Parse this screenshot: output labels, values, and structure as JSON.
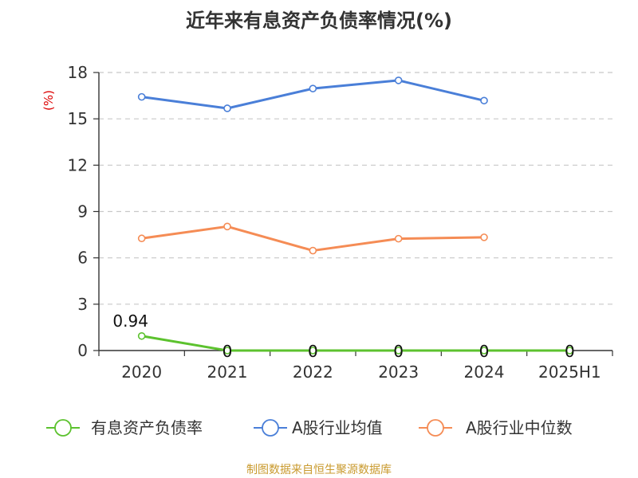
{
  "source": "制图数据来自恒生聚源数据库",
  "chart_data": {
    "type": "line",
    "title": "近年来有息资产负债率情况(%)",
    "ylabel": "(%)",
    "xlabel": "",
    "categories": [
      "2020",
      "2021",
      "2022",
      "2023",
      "2024",
      "2025H1"
    ],
    "ylim": [
      0,
      18
    ],
    "yticks": [
      0,
      3,
      6,
      9,
      12,
      15,
      18
    ],
    "grid": true,
    "legend_position": "bottom",
    "series": [
      {
        "name": "有息资产负债率",
        "color": "#5cc22e",
        "values": [
          0.94,
          0,
          0,
          0,
          0,
          0
        ],
        "labels": [
          "0.94",
          "0",
          "0",
          "0",
          "0",
          "0"
        ]
      },
      {
        "name": "A股行业均值",
        "color": "#4a7fd8",
        "values": [
          16.42,
          15.68,
          16.96,
          17.49,
          16.18,
          null
        ]
      },
      {
        "name": "A股行业中位数",
        "color": "#f58c55",
        "values": [
          7.26,
          8.03,
          6.47,
          7.24,
          7.33,
          null
        ]
      }
    ]
  }
}
